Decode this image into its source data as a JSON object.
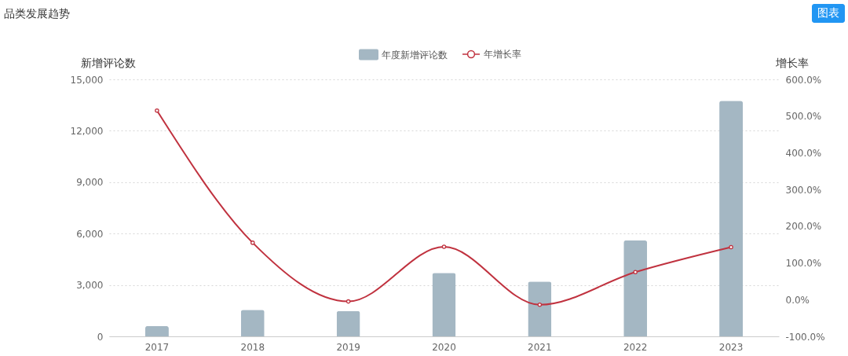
{
  "chart_data": {
    "type": "bar",
    "title": "品类发展趋势",
    "ylabel": "新增评论数",
    "y2label": "增长率",
    "categories": [
      "2017",
      "2018",
      "2019",
      "2020",
      "2021",
      "2022",
      "2023"
    ],
    "series": [
      {
        "name": "年度新增评论数",
        "color": "#a4b7c3",
        "values": [
          600,
          1550,
          1480,
          3700,
          3200,
          5600,
          13750
        ]
      },
      {
        "name": "年增长率",
        "type": "line",
        "axis": "y2",
        "color": "#c0323f",
        "values": [
          515,
          155,
          -5,
          144,
          -14,
          75,
          143
        ]
      }
    ],
    "ylim": [
      0,
      15000
    ],
    "yticks": [
      0,
      {
        "value": 3000,
        "label": "3,000"
      },
      {
        "value": 6000,
        "label": "6,000"
      },
      {
        "value": 9000,
        "label": "9,000"
      },
      {
        "value": 12000,
        "label": "12,000"
      },
      {
        "value": 15000,
        "label": "15,000"
      }
    ],
    "y2lim": [
      -100,
      600
    ],
    "y2ticks": [
      {
        "value": -100,
        "label": "-100.0%"
      },
      {
        "value": 0,
        "label": "0.0%"
      },
      {
        "value": 100,
        "label": "100.0%"
      },
      {
        "value": 200,
        "label": "200.0%"
      },
      {
        "value": 300,
        "label": "300.0%"
      },
      {
        "value": 400,
        "label": "400.0%"
      },
      {
        "value": 500,
        "label": "500.0%"
      },
      {
        "value": 600,
        "label": "600.0%"
      }
    ],
    "grid": "y",
    "legend": "top",
    "marker": "circle",
    "line_style": "solid",
    "annotations": [
      "图表"
    ]
  }
}
